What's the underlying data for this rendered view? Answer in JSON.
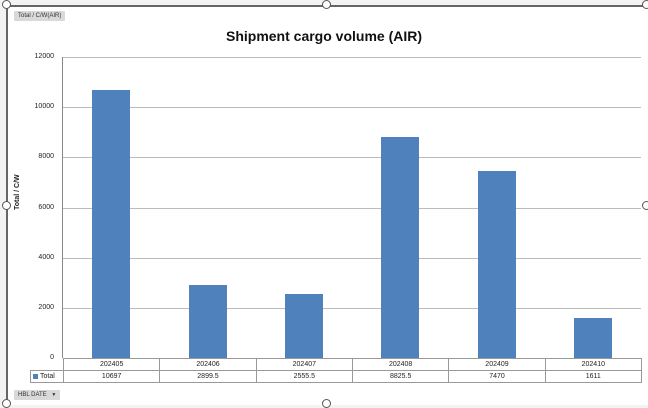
{
  "pivot": {
    "value_field_button": "Total / C/W(AIR)",
    "axis_field_button": "HBL DATE",
    "axis_field_dropdown_icon": "dropdown-arrow-icon"
  },
  "chart_data": {
    "type": "bar",
    "title": "Shipment cargo volume (AIR)",
    "xlabel": "",
    "ylabel": "Total / C/W",
    "ylim": [
      0,
      12000
    ],
    "yticks": [
      "12000",
      "10000",
      "8000",
      "6000",
      "4000",
      "2000",
      "0"
    ],
    "grid": true,
    "legend_position": "data-table",
    "categories": [
      "202405",
      "202406",
      "202407",
      "202408",
      "202409",
      "202410"
    ],
    "series": [
      {
        "name": "Total",
        "color": "#4f81bd",
        "values": [
          10697,
          2899.5,
          2555.5,
          8825.5,
          7470,
          1611
        ]
      }
    ],
    "data_table": {
      "series_label": "Total",
      "values_text": [
        "10697",
        "2899.5",
        "2555.5",
        "8825.5",
        "7470",
        "1611"
      ]
    }
  }
}
